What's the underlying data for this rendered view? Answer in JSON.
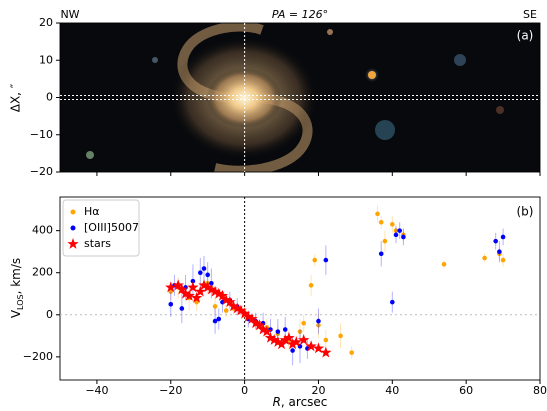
{
  "chart_data": [
    {
      "type": "image",
      "title": "PA = 126°",
      "left_label": "NW",
      "right_label": "SE",
      "panel_label": "(a)",
      "ylabel": "ΔX, ″",
      "ylim": [
        -20,
        20
      ],
      "yticks": [
        20,
        10,
        0,
        {
          "value": -10,
          "label": "−10"
        },
        {
          "value": -20,
          "label": "−20"
        }
      ]
    },
    {
      "type": "scatter",
      "panel_label": "(b)",
      "xlabel": {
        "var": "R",
        "rest": ", arcsec"
      },
      "ylabel": {
        "main": "V",
        "sub": "LOS",
        "rest": ", km/s"
      },
      "xlim": [
        -50,
        80
      ],
      "ylim": [
        -310,
        560
      ],
      "xticks": [
        {
          "value": -40,
          "label": "−40"
        },
        {
          "value": -20,
          "label": "−20"
        },
        0,
        20,
        40,
        60,
        80
      ],
      "yticks": [
        {
          "value": -200,
          "label": "−200"
        },
        0,
        200,
        400
      ],
      "legend": "upper left",
      "series": [
        {
          "name": "Hα",
          "color": "orange",
          "marker": "circle",
          "x": [
            -20,
            -18,
            -15,
            -13,
            -10,
            -8,
            -5,
            -3,
            0,
            3,
            6,
            9,
            12,
            15,
            16,
            18,
            19,
            20,
            22,
            26,
            29,
            36,
            37,
            38,
            40,
            41,
            43,
            54,
            65,
            69,
            70
          ],
          "values": [
            110,
            130,
            80,
            60,
            150,
            40,
            20,
            30,
            10,
            -30,
            -60,
            -90,
            -120,
            -80,
            -40,
            140,
            260,
            -50,
            -120,
            -100,
            -180,
            480,
            440,
            350,
            430,
            400,
            380,
            240,
            270,
            290,
            260
          ],
          "errors": [
            40,
            50,
            60,
            40,
            50,
            40,
            30,
            30,
            30,
            30,
            40,
            40,
            50,
            60,
            40,
            50,
            30,
            60,
            50,
            60,
            30,
            40,
            30,
            50,
            40,
            30,
            30,
            20,
            20,
            30,
            30
          ]
        },
        {
          "name": "[OIII]5007",
          "color": "blue",
          "marker": "circle",
          "x": [
            -20,
            -19,
            -17,
            -16,
            -14,
            -12,
            -11,
            -10,
            -9,
            -8,
            -7,
            -6,
            -4,
            -2,
            1,
            3,
            5,
            7,
            9,
            11,
            13,
            15,
            17,
            20,
            22,
            37,
            40,
            41,
            42,
            43,
            68,
            69,
            70
          ],
          "values": [
            50,
            140,
            30,
            130,
            160,
            200,
            220,
            190,
            150,
            -30,
            -20,
            60,
            70,
            40,
            -20,
            -30,
            -40,
            -70,
            -80,
            -70,
            -170,
            -150,
            -160,
            -30,
            260,
            290,
            60,
            380,
            400,
            370,
            350,
            300,
            370
          ],
          "errors": [
            60,
            50,
            70,
            60,
            80,
            70,
            60,
            60,
            70,
            60,
            50,
            50,
            40,
            40,
            40,
            40,
            50,
            50,
            60,
            60,
            70,
            80,
            50,
            60,
            70,
            60,
            50,
            40,
            40,
            40,
            40,
            50,
            40
          ]
        },
        {
          "name": "stars",
          "color": "red",
          "marker": "star",
          "x": [
            -20,
            -18,
            -17,
            -16,
            -15,
            -14,
            -13,
            -12,
            -11,
            -10,
            -9,
            -8,
            -7,
            -6,
            -5,
            -4,
            -3,
            -2,
            -1,
            0,
            1,
            2,
            3,
            4,
            5,
            6,
            7,
            8,
            9,
            10,
            11,
            12,
            13,
            14,
            16,
            18,
            20,
            22
          ],
          "values": [
            130,
            140,
            120,
            100,
            90,
            130,
            80,
            110,
            140,
            130,
            120,
            110,
            100,
            90,
            70,
            60,
            40,
            30,
            20,
            5,
            -10,
            -20,
            -40,
            -50,
            -70,
            -80,
            -110,
            -120,
            -130,
            -140,
            -120,
            -110,
            -140,
            -130,
            -120,
            -150,
            -160,
            -180
          ]
        }
      ]
    }
  ]
}
